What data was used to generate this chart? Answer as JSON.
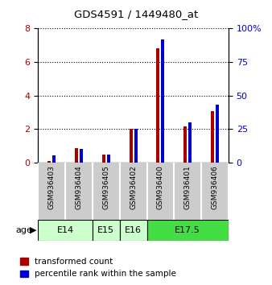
{
  "title": "GDS4591 / 1449480_at",
  "samples": [
    "GSM936403",
    "GSM936404",
    "GSM936405",
    "GSM936402",
    "GSM936400",
    "GSM936401",
    "GSM936406"
  ],
  "transformed_count": [
    0.08,
    0.85,
    0.45,
    2.0,
    6.8,
    2.15,
    3.05
  ],
  "percentile_rank": [
    5.0,
    10.0,
    6.0,
    25.0,
    92.0,
    30.0,
    43.0
  ],
  "age_groups": [
    {
      "label": "E14",
      "spans": [
        0,
        1
      ],
      "color": "#ccffcc"
    },
    {
      "label": "E15",
      "spans": [
        2
      ],
      "color": "#ccffcc"
    },
    {
      "label": "E16",
      "spans": [
        3
      ],
      "color": "#ccffcc"
    },
    {
      "label": "E17.5",
      "spans": [
        4,
        5,
        6
      ],
      "color": "#44dd44"
    }
  ],
  "bar_colors": {
    "red": "#aa0000",
    "blue": "#0000cc"
  },
  "ylim_left": [
    0,
    8
  ],
  "ylim_right": [
    0,
    100
  ],
  "yticks_left": [
    0,
    2,
    4,
    6,
    8
  ],
  "yticks_right": [
    0,
    25,
    50,
    75,
    100
  ],
  "legend_labels": [
    "transformed count",
    "percentile rank within the sample"
  ],
  "age_label": "age",
  "bar_width": 0.12,
  "bar_gap": 0.06
}
